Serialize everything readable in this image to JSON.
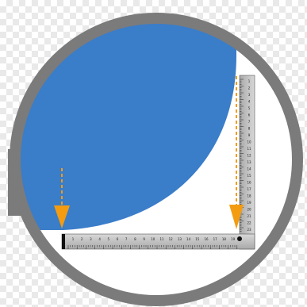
{
  "colors": {
    "blue_shape": "#3a7dc9",
    "frame_ring": "#7b7b7b",
    "ruler_face": "#c4c4c4",
    "ruler_edge": "#111111",
    "arrow": "#f39c12",
    "checker": "#e9e9e9"
  },
  "icons": {
    "arrow_left": "down-arrow-icon",
    "arrow_right": "down-arrow-icon"
  },
  "ruler": {
    "horizontal_numbers": [
      "1",
      "2",
      "3",
      "4",
      "5",
      "6",
      "7",
      "8",
      "9",
      "10",
      "11",
      "12",
      "13",
      "14",
      "15",
      "16",
      "17",
      "18",
      "19"
    ],
    "vertical_numbers": [
      "1",
      "2",
      "3",
      "4",
      "5",
      "6",
      "7",
      "8",
      "9",
      "10",
      "11",
      "12",
      "13",
      "14",
      "15",
      "16",
      "17",
      "18",
      "19",
      "20",
      "21",
      "22",
      "23",
      "24"
    ]
  }
}
